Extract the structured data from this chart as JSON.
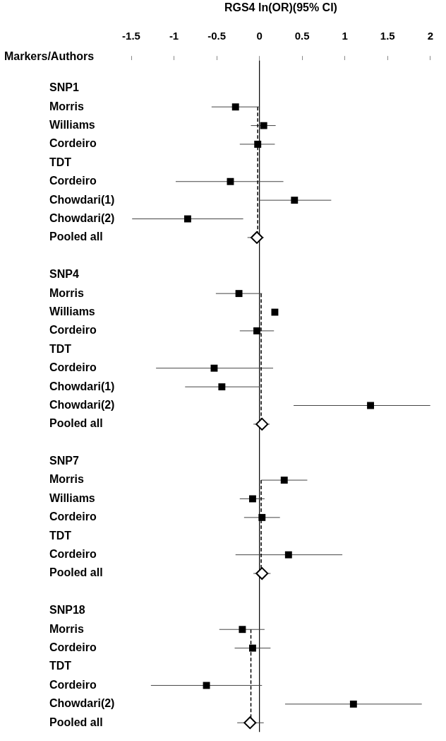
{
  "chart_data": {
    "type": "scatter",
    "orientation": "horizontal",
    "xlabel": "RGS4 ln(OR)(95% CI)",
    "ylabel": "Markers/Authors",
    "categories": [
      null,
      "SNP1",
      "Morris",
      "Williams",
      "Cordeiro",
      "TDT",
      "Cordeiro",
      "Chowdari(1)",
      "Chowdari(2)",
      "Pooled all",
      null,
      "SNP4",
      "Morris",
      "Williams",
      "Cordeiro",
      "TDT",
      "Cordeiro",
      "Chowdari(1)",
      "Chowdari(2)",
      "Pooled all",
      null,
      "SNP7",
      "Morris",
      "Williams",
      "Cordeiro",
      "TDT",
      "Cordeiro",
      "Pooled all",
      null,
      "SNP18",
      "Morris",
      "Cordeiro",
      "TDT",
      "Cordeiro",
      "Chowdari(2)",
      "Pooled all"
    ],
    "xlim": [
      -1.5,
      2
    ],
    "xticks": [
      -1.5,
      -1,
      -0.5,
      0,
      0.5,
      1,
      1.5,
      2
    ],
    "series": [
      {
        "marker": "square",
        "color": "#000000",
        "values": [
          null,
          null,
          -0.28,
          0.05,
          -0.02,
          null,
          -0.34,
          0.41,
          -0.84,
          null,
          null,
          null,
          -0.24,
          0.18,
          -0.03,
          null,
          -0.53,
          -0.44,
          1.3,
          null,
          null,
          null,
          0.29,
          -0.08,
          0.03,
          null,
          0.34,
          null,
          null,
          null,
          -0.2,
          -0.08,
          null,
          -0.62,
          1.1,
          null
        ],
        "errors": [
          null,
          null,
          [
            -0.56,
            0.0
          ],
          [
            -0.1,
            0.19
          ],
          [
            -0.23,
            0.18
          ],
          null,
          [
            -0.98,
            0.28
          ],
          [
            0.0,
            0.84
          ],
          [
            -1.49,
            -0.19
          ],
          null,
          null,
          null,
          [
            -0.51,
            0.03
          ],
          null,
          [
            -0.23,
            0.17
          ],
          null,
          [
            -1.21,
            0.16
          ],
          [
            -0.87,
            0.0
          ],
          [
            0.4,
            2
          ],
          null,
          null,
          null,
          [
            0.02,
            0.56
          ],
          [
            -0.23,
            0.06
          ],
          [
            -0.18,
            0.24
          ],
          null,
          [
            -0.28,
            0.97
          ],
          null,
          null,
          null,
          [
            -0.47,
            0.06
          ],
          [
            -0.29,
            0.13
          ],
          null,
          [
            -1.27,
            0.03
          ],
          [
            0.3,
            1.9
          ],
          null
        ]
      },
      {
        "type": "scatter",
        "marker": "diamond",
        "color": "#000000",
        "values": [
          null,
          null,
          null,
          null,
          null,
          null,
          null,
          null,
          null,
          -0.03,
          null,
          null,
          null,
          null,
          null,
          null,
          null,
          null,
          null,
          0.03,
          null,
          null,
          null,
          null,
          null,
          null,
          null,
          0.03,
          null,
          null,
          null,
          null,
          null,
          null,
          null,
          -0.11
        ],
        "errors": [
          null,
          null,
          null,
          null,
          null,
          null,
          null,
          null,
          null,
          [
            -0.14,
            0.05
          ],
          null,
          null,
          null,
          null,
          null,
          null,
          null,
          null,
          null,
          [
            -0.07,
            0.12
          ],
          null,
          null,
          null,
          null,
          null,
          null,
          null,
          [
            -0.07,
            0.13
          ],
          null,
          null,
          null,
          null,
          null,
          null,
          null,
          [
            -0.26,
            0.05
          ]
        ]
      },
      {
        "type": "line",
        "line_style": "dashed",
        "marker": "none",
        "color": "#000000",
        "values": [
          null,
          null,
          -0.02,
          -0.02,
          -0.02,
          -0.02,
          -0.02,
          -0.02,
          -0.02,
          -0.02,
          null,
          null,
          0.02,
          0.02,
          0.02,
          0.02,
          0.02,
          0.02,
          0.02,
          0.02,
          null,
          null,
          0.02,
          0.02,
          0.02,
          0.02,
          0.02,
          0.02,
          null,
          null,
          -0.1,
          -0.1,
          -0.1,
          -0.1,
          -0.1,
          -0.1
        ]
      }
    ],
    "ref_lines": [
      {
        "axis": "x",
        "value": 0,
        "color": "#000000"
      }
    ]
  }
}
